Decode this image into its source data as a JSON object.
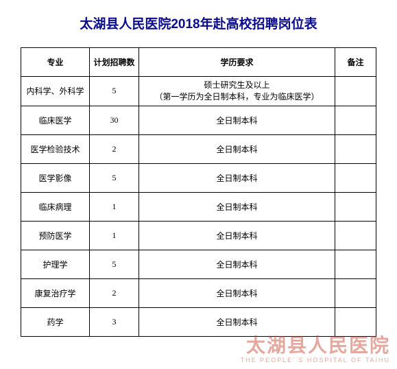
{
  "title": "太湖县人民医院2018年赴高校招聘岗位表",
  "columns": [
    "专业",
    "计划招聘数",
    "学历要求",
    "备注"
  ],
  "rows": [
    {
      "major": "内科学、外科学",
      "count": "5",
      "edu": "硕士研究生及以上\n（第一学历为全日制本科，专业为临床医学）",
      "note": ""
    },
    {
      "major": "临床医学",
      "count": "30",
      "edu": "全日制本科",
      "note": ""
    },
    {
      "major": "医学检验技术",
      "count": "2",
      "edu": "全日制本科",
      "note": ""
    },
    {
      "major": "医学影像",
      "count": "5",
      "edu": "全日制本科",
      "note": ""
    },
    {
      "major": "临床病理",
      "count": "1",
      "edu": "全日制本科",
      "note": ""
    },
    {
      "major": "预防医学",
      "count": "1",
      "edu": "全日制本科",
      "note": ""
    },
    {
      "major": "护理学",
      "count": "5",
      "edu": "全日制本科",
      "note": ""
    },
    {
      "major": "康复治疗学",
      "count": "2",
      "edu": "全日制本科",
      "note": ""
    },
    {
      "major": "药学",
      "count": "3",
      "edu": "全日制本科",
      "note": ""
    }
  ],
  "watermark": {
    "cn": "太湖县人民医院",
    "en": "THE PEOPLE' S HOSPITAL OF TAIHU"
  },
  "style": {
    "title_color": "#0a0a8c",
    "border_color": "#000000",
    "font_size_title": 19,
    "font_size_cell": 12,
    "watermark_color": "rgba(200,60,40,0.45)"
  }
}
